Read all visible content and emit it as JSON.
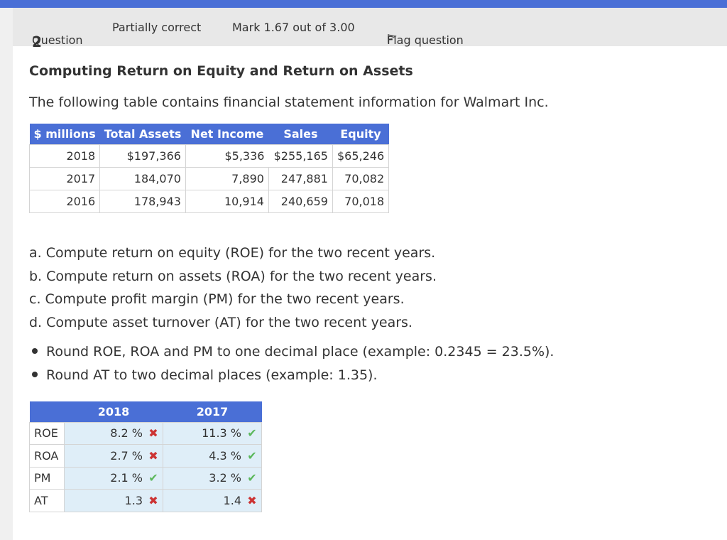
{
  "info": {
    "question_label": "Question",
    "question_number": "2",
    "state": "Partially correct",
    "mark": "Mark 1.67 out of 3.00",
    "flag": "Flag question"
  },
  "content": {
    "heading": "Computing Return on Equity and Return on Assets",
    "intro": "The following table contains financial statement information for Walmart Inc."
  },
  "fin_table": {
    "headers": [
      "$ millions",
      "Total Assets",
      "Net Income",
      "Sales",
      "Equity"
    ],
    "rows": [
      [
        "2018",
        "$197,366",
        "$5,336",
        "$255,165",
        "$65,246"
      ],
      [
        "2017",
        "184,070",
        "7,890",
        "247,881",
        "70,082"
      ],
      [
        "2016",
        "178,943",
        "10,914",
        "240,659",
        "70,018"
      ]
    ]
  },
  "tasks": [
    "a. Compute return on equity (ROE) for the two recent years.",
    "b. Compute return on assets (ROA) for the two recent years.",
    "c. Compute profit margin (PM) for the two recent years.",
    "d. Compute asset turnover (AT) for the two recent years."
  ],
  "bullets": [
    "Round ROE, ROA and PM to one decimal place (example: 0.2345 = 23.5%).",
    "Round AT to two decimal places (example: 1.35)."
  ],
  "answer_table": {
    "headers": [
      "",
      "2018",
      "2017"
    ],
    "rows": [
      {
        "label": "ROE",
        "v2018": "8.2 %",
        "c2018": "wrong",
        "v2017": "11.3 %",
        "c2017": "correct"
      },
      {
        "label": "ROA",
        "v2018": "2.7 %",
        "c2018": "wrong",
        "v2017": "4.3 %",
        "c2017": "correct"
      },
      {
        "label": "PM",
        "v2018": "2.1 %",
        "c2018": "correct",
        "v2017": "3.2 %",
        "c2017": "correct"
      },
      {
        "label": "AT",
        "v2018": "1.3",
        "c2018": "wrong",
        "v2017": "1.4",
        "c2017": "wrong"
      }
    ]
  },
  "colors": {
    "accent": "#4a6fd6",
    "correct": "#5cb85c",
    "wrong": "#cc3333",
    "answer_bg": "#dfeef8"
  }
}
